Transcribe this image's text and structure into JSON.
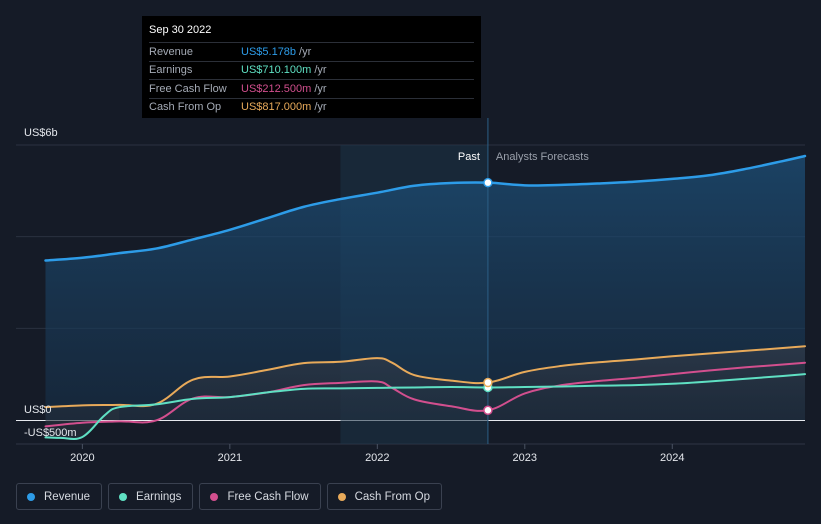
{
  "chart_data": {
    "type": "area",
    "y_unit_label_top": "US$6b",
    "y_unit_label_zero": "US$0",
    "y_unit_label_bottom": "-US$500m",
    "ylim": [
      -500,
      6000
    ],
    "x_ticks": [
      {
        "label": "2020",
        "x": 2020.0
      },
      {
        "label": "2021",
        "x": 2021.0
      },
      {
        "label": "2022",
        "x": 2022.0
      },
      {
        "label": "2023",
        "x": 2023.0
      },
      {
        "label": "2024",
        "x": 2024.0
      }
    ],
    "xlim": [
      2019.55,
      2024.9
    ],
    "past_label": "Past",
    "forecast_label": "Analysts Forecasts",
    "divider_x": 2022.75,
    "highlight_start_x": 2021.75,
    "series": [
      {
        "name": "Revenue",
        "color": "#2d9ce8",
        "x": [
          2019.75,
          2020.0,
          2020.25,
          2020.5,
          2020.75,
          2021.0,
          2021.25,
          2021.5,
          2021.75,
          2022.0,
          2022.25,
          2022.5,
          2022.75,
          2023.0,
          2023.25,
          2023.5,
          2023.75,
          2024.0,
          2024.25,
          2024.5,
          2024.75,
          2024.9
        ],
        "y": [
          3480,
          3540,
          3640,
          3740,
          3940,
          4150,
          4400,
          4650,
          4820,
          4960,
          5110,
          5170,
          5178,
          5120,
          5130,
          5160,
          5200,
          5260,
          5340,
          5480,
          5650,
          5760
        ]
      },
      {
        "name": "Earnings",
        "color": "#5fe0c3",
        "x": [
          2019.75,
          2019.85,
          2020.0,
          2020.15,
          2020.25,
          2020.5,
          2020.75,
          2021.0,
          2021.25,
          2021.5,
          2021.75,
          2022.0,
          2022.25,
          2022.5,
          2022.75,
          2023.0,
          2023.25,
          2023.5,
          2023.75,
          2024.0,
          2024.25,
          2024.5,
          2024.75,
          2024.9
        ],
        "y": [
          -380,
          -390,
          -370,
          100,
          280,
          340,
          460,
          500,
          600,
          680,
          690,
          700,
          710,
          720,
          710.1,
          720,
          730,
          750,
          760,
          790,
          840,
          900,
          960,
          1000
        ]
      },
      {
        "name": "Free Cash Flow",
        "color": "#d24f8e",
        "x": [
          2019.75,
          2020.0,
          2020.25,
          2020.5,
          2020.75,
          2021.0,
          2021.25,
          2021.5,
          2021.75,
          2022.0,
          2022.1,
          2022.25,
          2022.5,
          2022.75,
          2023.0,
          2023.25,
          2023.5,
          2023.75,
          2024.0,
          2024.25,
          2024.5,
          2024.75,
          2024.9
        ],
        "y": [
          -140,
          -60,
          -30,
          -10,
          470,
          500,
          600,
          760,
          810,
          840,
          700,
          450,
          300,
          212.5,
          580,
          760,
          850,
          920,
          1000,
          1080,
          1150,
          1210,
          1250
        ]
      },
      {
        "name": "Cash From Op",
        "color": "#e8aa5a",
        "x": [
          2019.75,
          2020.0,
          2020.25,
          2020.5,
          2020.75,
          2021.0,
          2021.25,
          2021.5,
          2021.75,
          2022.0,
          2022.1,
          2022.25,
          2022.5,
          2022.75,
          2023.0,
          2023.25,
          2023.5,
          2023.75,
          2024.0,
          2024.25,
          2024.5,
          2024.75,
          2024.9
        ],
        "y": [
          280,
          320,
          330,
          350,
          880,
          950,
          1090,
          1240,
          1270,
          1350,
          1250,
          980,
          860,
          817,
          1050,
          1180,
          1260,
          1320,
          1390,
          1450,
          1510,
          1570,
          1610
        ]
      }
    ]
  },
  "tooltip": {
    "date": "Sep 30 2022",
    "rows": [
      {
        "label": "Revenue",
        "value": "US$5.178b",
        "unit": "/yr",
        "color": "#2d9ce8"
      },
      {
        "label": "Earnings",
        "value": "US$710.100m",
        "unit": "/yr",
        "color": "#5fe0c3"
      },
      {
        "label": "Free Cash Flow",
        "value": "US$212.500m",
        "unit": "/yr",
        "color": "#d24f8e"
      },
      {
        "label": "Cash From Op",
        "value": "US$817.000m",
        "unit": "/yr",
        "color": "#e8aa5a"
      }
    ]
  },
  "legend": [
    {
      "label": "Revenue",
      "color": "#2d9ce8"
    },
    {
      "label": "Earnings",
      "color": "#5fe0c3"
    },
    {
      "label": "Free Cash Flow",
      "color": "#d24f8e"
    },
    {
      "label": "Cash From Op",
      "color": "#e8aa5a"
    }
  ]
}
